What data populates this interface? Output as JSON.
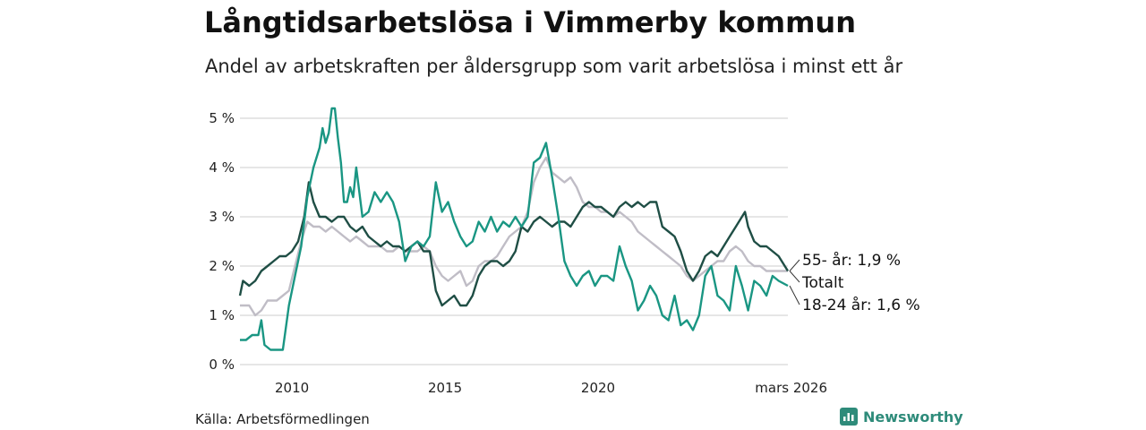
{
  "header": {
    "title": "Långtidsarbetslösa i Vimmerby kommun",
    "subtitle": "Andel av arbetskraften per åldersgrupp som varit arbetslösa i minst ett år"
  },
  "footer": {
    "source": "Källa: Arbetsförmedlingen",
    "brand": "Newsworthy"
  },
  "colors": {
    "age_55": "#1f4e45",
    "total": "#c0bdc6",
    "age_18_24": "#1a9683",
    "grid": "#dddddd",
    "brand": "#2e8b7a"
  },
  "chart_data": {
    "type": "line",
    "title": "Långtidsarbetslösa i Vimmerby kommun",
    "subtitle": "Andel av arbetskraften per åldersgrupp som varit arbetslösa i minst ett år",
    "xlabel": "",
    "ylabel": "",
    "x_range": [
      2008.3,
      2026.2
    ],
    "ylim": [
      0,
      5.3
    ],
    "y_ticks": [
      0,
      1,
      2,
      3,
      4,
      5
    ],
    "y_tick_labels": [
      "0 %",
      "1 %",
      "2 %",
      "3 %",
      "4 %",
      "5 %"
    ],
    "x_ticks": [
      2010,
      2015,
      2020,
      2026.2
    ],
    "x_tick_labels": [
      "2010",
      "2015",
      "2020",
      "mars 2026"
    ],
    "grid": true,
    "legend": "end-labels",
    "series": [
      {
        "key": "total",
        "name": "Totalt",
        "end_label": "Totalt",
        "points": [
          [
            2008.3,
            1.2
          ],
          [
            2008.6,
            1.2
          ],
          [
            2008.8,
            1.0
          ],
          [
            2009.0,
            1.1
          ],
          [
            2009.2,
            1.3
          ],
          [
            2009.5,
            1.3
          ],
          [
            2009.7,
            1.4
          ],
          [
            2009.9,
            1.5
          ],
          [
            2010.1,
            2.0
          ],
          [
            2010.3,
            2.5
          ],
          [
            2010.5,
            2.9
          ],
          [
            2010.7,
            2.8
          ],
          [
            2010.9,
            2.8
          ],
          [
            2011.1,
            2.7
          ],
          [
            2011.3,
            2.8
          ],
          [
            2011.5,
            2.7
          ],
          [
            2011.7,
            2.6
          ],
          [
            2011.9,
            2.5
          ],
          [
            2012.1,
            2.6
          ],
          [
            2012.3,
            2.5
          ],
          [
            2012.5,
            2.4
          ],
          [
            2012.7,
            2.4
          ],
          [
            2012.9,
            2.4
          ],
          [
            2013.1,
            2.3
          ],
          [
            2013.3,
            2.3
          ],
          [
            2013.5,
            2.4
          ],
          [
            2013.7,
            2.3
          ],
          [
            2013.9,
            2.3
          ],
          [
            2014.1,
            2.3
          ],
          [
            2014.3,
            2.4
          ],
          [
            2014.5,
            2.3
          ],
          [
            2014.7,
            2.0
          ],
          [
            2014.9,
            1.8
          ],
          [
            2015.1,
            1.7
          ],
          [
            2015.3,
            1.8
          ],
          [
            2015.5,
            1.9
          ],
          [
            2015.7,
            1.6
          ],
          [
            2015.9,
            1.7
          ],
          [
            2016.1,
            2.0
          ],
          [
            2016.3,
            2.1
          ],
          [
            2016.5,
            2.1
          ],
          [
            2016.7,
            2.2
          ],
          [
            2016.9,
            2.4
          ],
          [
            2017.1,
            2.6
          ],
          [
            2017.3,
            2.7
          ],
          [
            2017.5,
            2.8
          ],
          [
            2017.7,
            3.1
          ],
          [
            2017.9,
            3.7
          ],
          [
            2018.1,
            4.0
          ],
          [
            2018.3,
            4.2
          ],
          [
            2018.5,
            3.9
          ],
          [
            2018.7,
            3.8
          ],
          [
            2018.9,
            3.7
          ],
          [
            2019.1,
            3.8
          ],
          [
            2019.3,
            3.6
          ],
          [
            2019.5,
            3.3
          ],
          [
            2019.7,
            3.2
          ],
          [
            2019.9,
            3.2
          ],
          [
            2020.1,
            3.1
          ],
          [
            2020.3,
            3.1
          ],
          [
            2020.5,
            3.0
          ],
          [
            2020.7,
            3.1
          ],
          [
            2020.9,
            3.0
          ],
          [
            2021.1,
            2.9
          ],
          [
            2021.3,
            2.7
          ],
          [
            2021.5,
            2.6
          ],
          [
            2021.7,
            2.5
          ],
          [
            2021.9,
            2.4
          ],
          [
            2022.1,
            2.3
          ],
          [
            2022.3,
            2.2
          ],
          [
            2022.5,
            2.1
          ],
          [
            2022.7,
            2.0
          ],
          [
            2022.9,
            1.8
          ],
          [
            2023.1,
            1.7
          ],
          [
            2023.3,
            1.8
          ],
          [
            2023.5,
            1.9
          ],
          [
            2023.7,
            2.0
          ],
          [
            2023.9,
            2.1
          ],
          [
            2024.1,
            2.1
          ],
          [
            2024.3,
            2.3
          ],
          [
            2024.5,
            2.4
          ],
          [
            2024.7,
            2.3
          ],
          [
            2024.9,
            2.1
          ],
          [
            2025.1,
            2.0
          ],
          [
            2025.3,
            2.0
          ],
          [
            2025.5,
            1.9
          ],
          [
            2025.7,
            1.9
          ],
          [
            2025.9,
            1.9
          ],
          [
            2026.2,
            1.9
          ]
        ]
      },
      {
        "key": "age_55",
        "name": "55- år",
        "end_label": "55- år: 1,9 %",
        "points": [
          [
            2008.3,
            1.4
          ],
          [
            2008.4,
            1.7
          ],
          [
            2008.6,
            1.6
          ],
          [
            2008.8,
            1.7
          ],
          [
            2009.0,
            1.9
          ],
          [
            2009.2,
            2.0
          ],
          [
            2009.4,
            2.1
          ],
          [
            2009.6,
            2.2
          ],
          [
            2009.8,
            2.2
          ],
          [
            2010.0,
            2.3
          ],
          [
            2010.2,
            2.5
          ],
          [
            2010.4,
            3.0
          ],
          [
            2010.55,
            3.7
          ],
          [
            2010.7,
            3.3
          ],
          [
            2010.9,
            3.0
          ],
          [
            2011.1,
            3.0
          ],
          [
            2011.3,
            2.9
          ],
          [
            2011.5,
            3.0
          ],
          [
            2011.7,
            3.0
          ],
          [
            2011.9,
            2.8
          ],
          [
            2012.1,
            2.7
          ],
          [
            2012.3,
            2.8
          ],
          [
            2012.5,
            2.6
          ],
          [
            2012.7,
            2.5
          ],
          [
            2012.9,
            2.4
          ],
          [
            2013.1,
            2.5
          ],
          [
            2013.3,
            2.4
          ],
          [
            2013.5,
            2.4
          ],
          [
            2013.7,
            2.3
          ],
          [
            2013.9,
            2.4
          ],
          [
            2014.1,
            2.5
          ],
          [
            2014.3,
            2.3
          ],
          [
            2014.5,
            2.3
          ],
          [
            2014.7,
            1.5
          ],
          [
            2014.9,
            1.2
          ],
          [
            2015.1,
            1.3
          ],
          [
            2015.3,
            1.4
          ],
          [
            2015.5,
            1.2
          ],
          [
            2015.7,
            1.2
          ],
          [
            2015.9,
            1.4
          ],
          [
            2016.1,
            1.8
          ],
          [
            2016.3,
            2.0
          ],
          [
            2016.5,
            2.1
          ],
          [
            2016.7,
            2.1
          ],
          [
            2016.9,
            2.0
          ],
          [
            2017.1,
            2.1
          ],
          [
            2017.3,
            2.3
          ],
          [
            2017.5,
            2.8
          ],
          [
            2017.7,
            2.7
          ],
          [
            2017.9,
            2.9
          ],
          [
            2018.1,
            3.0
          ],
          [
            2018.3,
            2.9
          ],
          [
            2018.5,
            2.8
          ],
          [
            2018.7,
            2.9
          ],
          [
            2018.9,
            2.9
          ],
          [
            2019.1,
            2.8
          ],
          [
            2019.3,
            3.0
          ],
          [
            2019.5,
            3.2
          ],
          [
            2019.7,
            3.3
          ],
          [
            2019.9,
            3.2
          ],
          [
            2020.1,
            3.2
          ],
          [
            2020.3,
            3.1
          ],
          [
            2020.5,
            3.0
          ],
          [
            2020.7,
            3.2
          ],
          [
            2020.9,
            3.3
          ],
          [
            2021.1,
            3.2
          ],
          [
            2021.3,
            3.3
          ],
          [
            2021.5,
            3.2
          ],
          [
            2021.7,
            3.3
          ],
          [
            2021.9,
            3.3
          ],
          [
            2022.1,
            2.8
          ],
          [
            2022.3,
            2.7
          ],
          [
            2022.5,
            2.6
          ],
          [
            2022.7,
            2.3
          ],
          [
            2022.9,
            1.9
          ],
          [
            2023.1,
            1.7
          ],
          [
            2023.3,
            1.9
          ],
          [
            2023.5,
            2.2
          ],
          [
            2023.7,
            2.3
          ],
          [
            2023.9,
            2.2
          ],
          [
            2024.1,
            2.4
          ],
          [
            2024.3,
            2.6
          ],
          [
            2024.5,
            2.8
          ],
          [
            2024.7,
            3.0
          ],
          [
            2024.8,
            3.1
          ],
          [
            2024.9,
            2.8
          ],
          [
            2025.1,
            2.5
          ],
          [
            2025.3,
            2.4
          ],
          [
            2025.5,
            2.4
          ],
          [
            2025.7,
            2.3
          ],
          [
            2025.9,
            2.2
          ],
          [
            2026.2,
            1.9
          ]
        ]
      },
      {
        "key": "age_18_24",
        "name": "18-24 år",
        "end_label": "18-24 år: 1,6 %",
        "points": [
          [
            2008.3,
            0.5
          ],
          [
            2008.5,
            0.5
          ],
          [
            2008.7,
            0.6
          ],
          [
            2008.9,
            0.6
          ],
          [
            2009.0,
            0.9
          ],
          [
            2009.1,
            0.4
          ],
          [
            2009.3,
            0.3
          ],
          [
            2009.5,
            0.3
          ],
          [
            2009.7,
            0.3
          ],
          [
            2009.9,
            1.2
          ],
          [
            2010.1,
            1.8
          ],
          [
            2010.3,
            2.4
          ],
          [
            2010.5,
            3.4
          ],
          [
            2010.7,
            4.0
          ],
          [
            2010.9,
            4.4
          ],
          [
            2011.0,
            4.8
          ],
          [
            2011.1,
            4.5
          ],
          [
            2011.2,
            4.7
          ],
          [
            2011.3,
            5.2
          ],
          [
            2011.4,
            5.2
          ],
          [
            2011.5,
            4.6
          ],
          [
            2011.6,
            4.1
          ],
          [
            2011.7,
            3.3
          ],
          [
            2011.8,
            3.3
          ],
          [
            2011.9,
            3.6
          ],
          [
            2012.0,
            3.4
          ],
          [
            2012.1,
            4.0
          ],
          [
            2012.3,
            3.0
          ],
          [
            2012.5,
            3.1
          ],
          [
            2012.7,
            3.5
          ],
          [
            2012.9,
            3.3
          ],
          [
            2013.1,
            3.5
          ],
          [
            2013.3,
            3.3
          ],
          [
            2013.5,
            2.9
          ],
          [
            2013.7,
            2.1
          ],
          [
            2013.9,
            2.4
          ],
          [
            2014.1,
            2.5
          ],
          [
            2014.3,
            2.4
          ],
          [
            2014.5,
            2.6
          ],
          [
            2014.7,
            3.7
          ],
          [
            2014.9,
            3.1
          ],
          [
            2015.1,
            3.3
          ],
          [
            2015.3,
            2.9
          ],
          [
            2015.5,
            2.6
          ],
          [
            2015.7,
            2.4
          ],
          [
            2015.9,
            2.5
          ],
          [
            2016.1,
            2.9
          ],
          [
            2016.3,
            2.7
          ],
          [
            2016.5,
            3.0
          ],
          [
            2016.7,
            2.7
          ],
          [
            2016.9,
            2.9
          ],
          [
            2017.1,
            2.8
          ],
          [
            2017.3,
            3.0
          ],
          [
            2017.5,
            2.8
          ],
          [
            2017.7,
            3.0
          ],
          [
            2017.9,
            4.1
          ],
          [
            2018.1,
            4.2
          ],
          [
            2018.3,
            4.5
          ],
          [
            2018.5,
            3.8
          ],
          [
            2018.7,
            3.0
          ],
          [
            2018.9,
            2.1
          ],
          [
            2019.1,
            1.8
          ],
          [
            2019.3,
            1.6
          ],
          [
            2019.5,
            1.8
          ],
          [
            2019.7,
            1.9
          ],
          [
            2019.9,
            1.6
          ],
          [
            2020.1,
            1.8
          ],
          [
            2020.3,
            1.8
          ],
          [
            2020.5,
            1.7
          ],
          [
            2020.7,
            2.4
          ],
          [
            2020.9,
            2.0
          ],
          [
            2021.1,
            1.7
          ],
          [
            2021.3,
            1.1
          ],
          [
            2021.5,
            1.3
          ],
          [
            2021.7,
            1.6
          ],
          [
            2021.9,
            1.4
          ],
          [
            2022.1,
            1.0
          ],
          [
            2022.3,
            0.9
          ],
          [
            2022.5,
            1.4
          ],
          [
            2022.7,
            0.8
          ],
          [
            2022.9,
            0.9
          ],
          [
            2023.1,
            0.7
          ],
          [
            2023.3,
            1.0
          ],
          [
            2023.5,
            1.8
          ],
          [
            2023.7,
            2.0
          ],
          [
            2023.9,
            1.4
          ],
          [
            2024.1,
            1.3
          ],
          [
            2024.3,
            1.1
          ],
          [
            2024.5,
            2.0
          ],
          [
            2024.7,
            1.6
          ],
          [
            2024.9,
            1.1
          ],
          [
            2025.1,
            1.7
          ],
          [
            2025.3,
            1.6
          ],
          [
            2025.5,
            1.4
          ],
          [
            2025.7,
            1.8
          ],
          [
            2025.9,
            1.7
          ],
          [
            2026.2,
            1.6
          ]
        ]
      }
    ]
  }
}
